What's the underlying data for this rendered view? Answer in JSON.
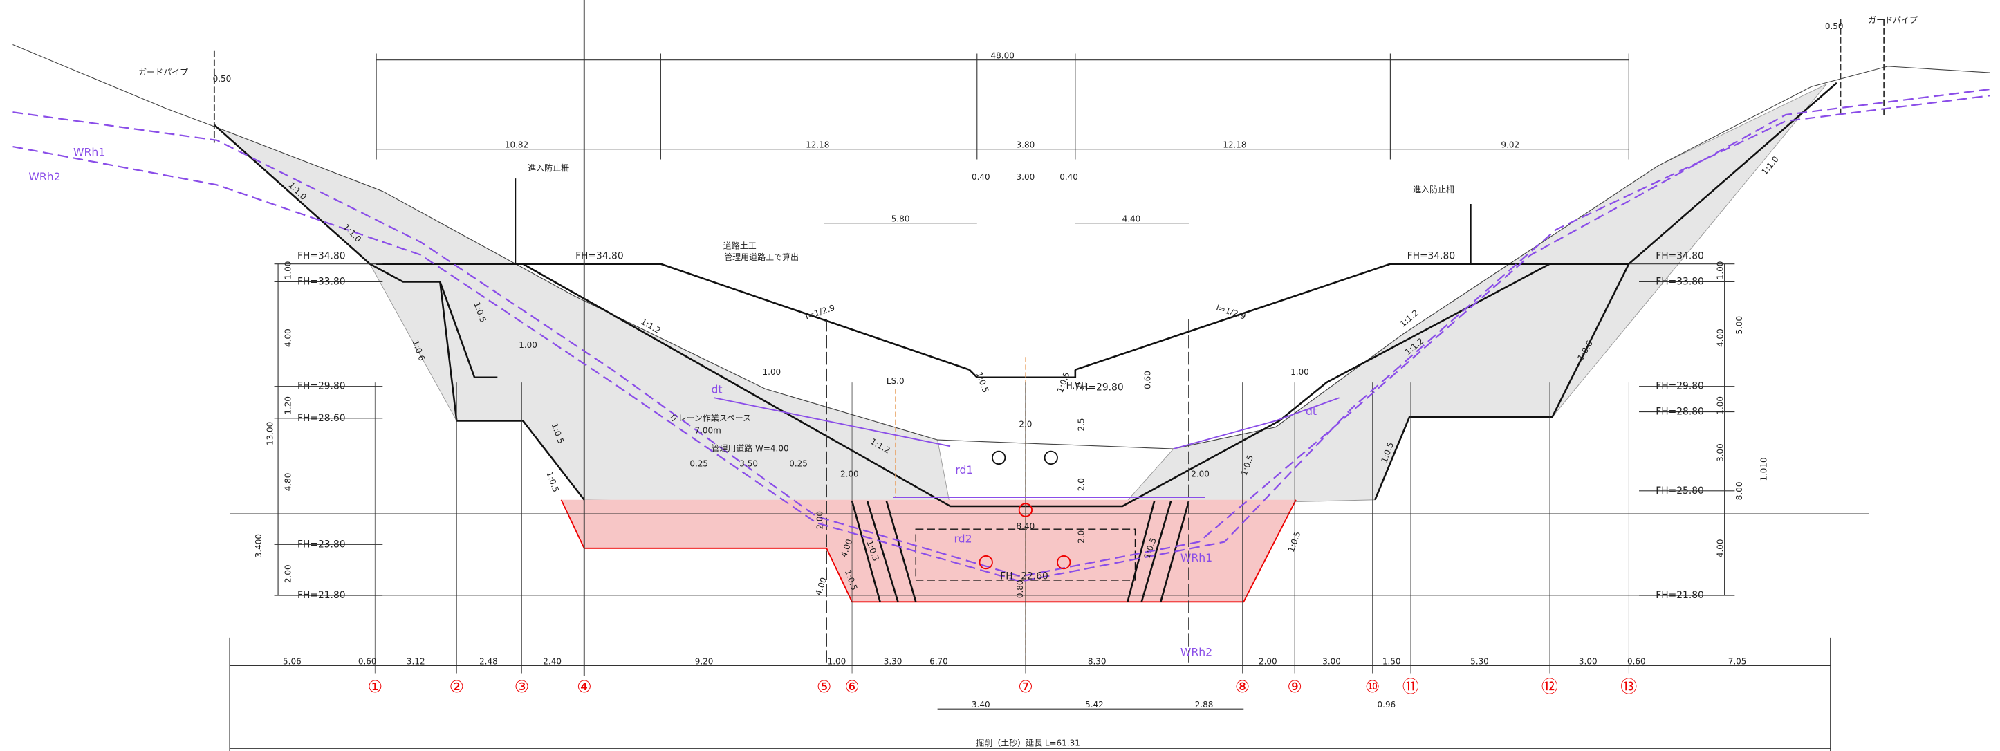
{
  "top_dimensions": [
    "48.00",
    "10.82",
    "12.18",
    "3.80",
    "12.18",
    "9.02",
    "0.40",
    "3.00",
    "0.40",
    "5.80",
    "4.40"
  ],
  "annotations": [
    "ガードパイプ",
    "0.50",
    "ガードパイプ",
    "0.50",
    "進入防止柵",
    "進入防止柵",
    "道路土工",
    "管理用道路工で算出",
    "クレーン作業スペース",
    "7.00m",
    "管理用道路 W=4.00",
    "H.W.L",
    "LS.0"
  ],
  "water_labels": [
    "WRh1",
    "WRh2",
    "dt",
    "dt",
    "rd1",
    "rd2",
    "WRh1",
    "WRh2"
  ],
  "fh_levels": [
    "FH=34.80",
    "FH=33.80",
    "FH=29.80",
    "FH=28.60",
    "FH=23.80",
    "FH=21.80",
    "FH=34.80",
    "FH=29.80",
    "FH=22.60",
    "FH=34.80",
    "FH=34.80",
    "FH=33.80",
    "FH=29.80",
    "FH=28.80",
    "FH=25.80",
    "FH=21.80"
  ],
  "gradients": [
    "I=1/2.9",
    "I=1/2.9"
  ],
  "slopes": [
    "1:1.0",
    "1:1.0",
    "1:0.6",
    "1:0.5",
    "1:0.5",
    "1:0.5",
    "1:1.2",
    "1:1.2",
    "1:0.3",
    "1:0.5",
    "1:0.5",
    "1:0.5",
    "1:0.5",
    "1:1.2",
    "1:1.2",
    "1:0.5",
    "1:0.6",
    "1:1.0",
    "1:0.5",
    "1:0.5"
  ],
  "vertical_dimensions": [
    "1.00",
    "4.00",
    "1.20",
    "13.00",
    "4.80",
    "3.400",
    "2.00",
    "1.00",
    "4.00",
    "5.00",
    "1.00",
    "3.00",
    "1.010",
    "8.00",
    "4.00",
    "0.60",
    "2.0",
    "2.5",
    "2.0",
    "2.0",
    "0.80",
    "2.00",
    "4.00",
    "4.00"
  ],
  "inner_dimensions": [
    "1.00",
    "1.00",
    "1.00",
    "0.25",
    "3.50",
    "0.25",
    "2.00",
    "2.00",
    "8.40"
  ],
  "bottom_dimensions": [
    "5.06",
    "0.60",
    "3.12",
    "2.48",
    "2.40",
    "9.20",
    "1.00",
    "3.30",
    "6.70",
    "8.30",
    "2.00",
    "3.00",
    "1.50",
    "5.30",
    "3.00",
    "0.60",
    "7.05"
  ],
  "stations": [
    "①",
    "②",
    "③",
    "④",
    "⑤",
    "⑥",
    "⑦",
    "⑧",
    "⑨",
    "⑩",
    "⑪",
    "⑫",
    "⑬"
  ],
  "bottom_sub_dimensions": [
    "3.40",
    "5.42",
    "2.88",
    "0.96"
  ],
  "total_length": "掘削（土砂）延長 L=61.31"
}
